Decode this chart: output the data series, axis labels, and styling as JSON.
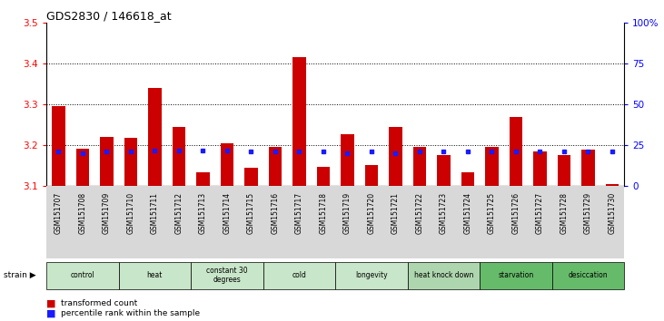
{
  "title": "GDS2830 / 146618_at",
  "samples": [
    "GSM151707",
    "GSM151708",
    "GSM151709",
    "GSM151710",
    "GSM151711",
    "GSM151712",
    "GSM151713",
    "GSM151714",
    "GSM151715",
    "GSM151716",
    "GSM151717",
    "GSM151718",
    "GSM151719",
    "GSM151720",
    "GSM151721",
    "GSM151722",
    "GSM151723",
    "GSM151724",
    "GSM151725",
    "GSM151726",
    "GSM151727",
    "GSM151728",
    "GSM151729",
    "GSM151730"
  ],
  "red_values": [
    3.295,
    3.192,
    3.22,
    3.218,
    3.34,
    3.245,
    3.135,
    3.205,
    3.145,
    3.195,
    3.415,
    3.148,
    3.228,
    3.152,
    3.245,
    3.195,
    3.175,
    3.135,
    3.195,
    3.27,
    3.185,
    3.175,
    3.19,
    3.105
  ],
  "blue_values": [
    21,
    20,
    21,
    21,
    22,
    22,
    22,
    22,
    21,
    21,
    21,
    21,
    20,
    21,
    20,
    21,
    21,
    21,
    21,
    21,
    21,
    21,
    21,
    21
  ],
  "groups": [
    {
      "label": "control",
      "start": 0,
      "end": 3,
      "color": "#c8e6c9"
    },
    {
      "label": "heat",
      "start": 3,
      "end": 6,
      "color": "#c8e6c9"
    },
    {
      "label": "constant 30\ndegrees",
      "start": 6,
      "end": 9,
      "color": "#c8e6c9"
    },
    {
      "label": "cold",
      "start": 9,
      "end": 12,
      "color": "#c8e6c9"
    },
    {
      "label": "longevity",
      "start": 12,
      "end": 15,
      "color": "#c8e6c9"
    },
    {
      "label": "heat knock down",
      "start": 15,
      "end": 18,
      "color": "#aed6ae"
    },
    {
      "label": "starvation",
      "start": 18,
      "end": 21,
      "color": "#66bb6a"
    },
    {
      "label": "desiccation",
      "start": 21,
      "end": 24,
      "color": "#66bb6a"
    }
  ],
  "ylim_left": [
    3.1,
    3.5
  ],
  "ylim_right": [
    0,
    100
  ],
  "yticks_left": [
    3.1,
    3.2,
    3.3,
    3.4,
    3.5
  ],
  "yticks_right": [
    0,
    25,
    50,
    75,
    100
  ],
  "ytick_labels_right": [
    "0",
    "25",
    "50",
    "75",
    "100%"
  ],
  "grid_lines": [
    3.2,
    3.3,
    3.4
  ],
  "bar_color": "#cc0000",
  "blue_color": "#1a1aff",
  "bar_width": 0.55,
  "legend_items": [
    {
      "color": "#cc0000",
      "label": "transformed count"
    },
    {
      "color": "#1a1aff",
      "label": "percentile rank within the sample"
    }
  ]
}
